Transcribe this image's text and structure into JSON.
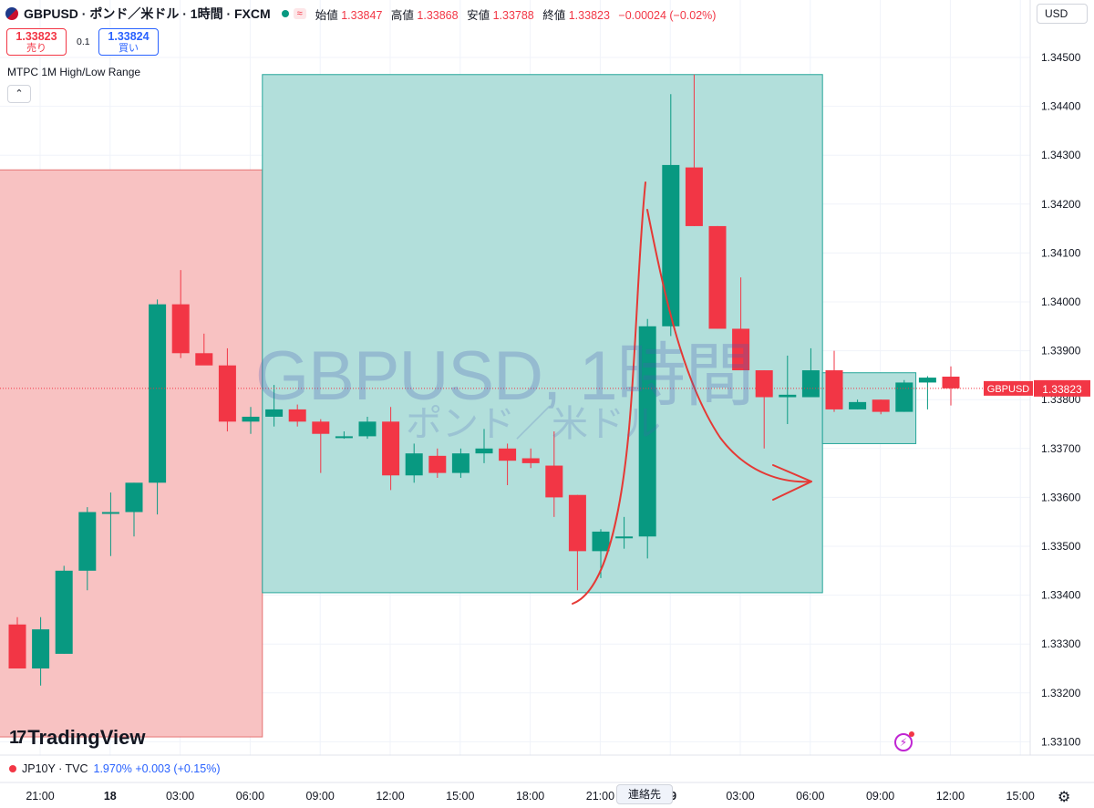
{
  "header": {
    "symbol": "GBPUSD · ポンド／米ドル · 1時間 · FXCM",
    "approx_label": "≈",
    "open_label": "始値",
    "open_value": "1.33847",
    "high_label": "高値",
    "high_value": "1.33868",
    "low_label": "安値",
    "low_value": "1.33788",
    "close_label": "終値",
    "close_value": "1.33823",
    "change": "−0.00024 (−0.02%)"
  },
  "trade": {
    "sell_price": "1.33823",
    "sell_label": "売り",
    "spread": "0.1",
    "buy_price": "1.33824",
    "buy_label": "買い"
  },
  "indicator_label": "MTPC  1M High/Low Range",
  "collapse_icon": "⌃",
  "currency": "USD",
  "watermark": {
    "line1": "GBPUSD, 1時間",
    "line2": "ポンド／米ドル"
  },
  "brand": "TradingView",
  "bottom_symbol": {
    "name": "JP10Y · TVC",
    "value": "1.970%  +0.003 (+0.15%)"
  },
  "tooltip": "連絡先",
  "last_price_tag": {
    "symbol": "GBPUSD",
    "price": "1.33823"
  },
  "colors": {
    "up": "#089981",
    "down": "#f23645",
    "grid": "#f0f3fa",
    "red_box": "#f8c2c2",
    "teal_box": "#b2dfdb",
    "teal_border": "#26a69a"
  },
  "chart_data": {
    "type": "candlestick",
    "y_ticks": [
      "1.34500",
      "1.34400",
      "1.34300",
      "1.34200",
      "1.34100",
      "1.34000",
      "1.33900",
      "1.33800",
      "1.33700",
      "1.33600",
      "1.33500",
      "1.33400",
      "1.33300",
      "1.33200",
      "1.33100"
    ],
    "ylim": [
      1.3307,
      1.346
    ],
    "x_ticks": [
      "21:00",
      "18",
      "03:00",
      "06:00",
      "09:00",
      "12:00",
      "15:00",
      "18:00",
      "21:00",
      "19",
      "03:00",
      "06:00",
      "09:00",
      "12:00",
      "15:00"
    ],
    "x_tick_bold": [
      "18",
      "19"
    ],
    "candles": [
      {
        "o": 1.3334,
        "h": 1.33355,
        "l": 1.3325,
        "c": 1.3325
      },
      {
        "o": 1.3325,
        "h": 1.33355,
        "l": 1.33215,
        "c": 1.3333
      },
      {
        "o": 1.3328,
        "h": 1.3346,
        "l": 1.3328,
        "c": 1.3345
      },
      {
        "o": 1.3345,
        "h": 1.3358,
        "l": 1.3341,
        "c": 1.3357
      },
      {
        "o": 1.3357,
        "h": 1.3361,
        "l": 1.3348,
        "c": 1.3357
      },
      {
        "o": 1.3357,
        "h": 1.3363,
        "l": 1.3352,
        "c": 1.3363
      },
      {
        "o": 1.3363,
        "h": 1.34005,
        "l": 1.33565,
        "c": 1.33995
      },
      {
        "o": 1.33995,
        "h": 1.34065,
        "l": 1.33885,
        "c": 1.33895
      },
      {
        "o": 1.33895,
        "h": 1.33935,
        "l": 1.33875,
        "c": 1.3387
      },
      {
        "o": 1.3387,
        "h": 1.33905,
        "l": 1.33735,
        "c": 1.33755
      },
      {
        "o": 1.33755,
        "h": 1.33785,
        "l": 1.3373,
        "c": 1.33765
      },
      {
        "o": 1.33765,
        "h": 1.3383,
        "l": 1.33745,
        "c": 1.3378
      },
      {
        "o": 1.3378,
        "h": 1.3379,
        "l": 1.33745,
        "c": 1.33755
      },
      {
        "o": 1.33755,
        "h": 1.3376,
        "l": 1.3365,
        "c": 1.3373
      },
      {
        "o": 1.33725,
        "h": 1.33735,
        "l": 1.3372,
        "c": 1.33725
      },
      {
        "o": 1.33725,
        "h": 1.33765,
        "l": 1.3372,
        "c": 1.33755
      },
      {
        "o": 1.33755,
        "h": 1.33785,
        "l": 1.33615,
        "c": 1.33645
      },
      {
        "o": 1.33645,
        "h": 1.3371,
        "l": 1.3363,
        "c": 1.3369
      },
      {
        "o": 1.33685,
        "h": 1.337,
        "l": 1.3364,
        "c": 1.3365
      },
      {
        "o": 1.3365,
        "h": 1.337,
        "l": 1.3364,
        "c": 1.3369
      },
      {
        "o": 1.3369,
        "h": 1.3374,
        "l": 1.3367,
        "c": 1.337
      },
      {
        "o": 1.337,
        "h": 1.3371,
        "l": 1.33625,
        "c": 1.33675
      },
      {
        "o": 1.3368,
        "h": 1.337,
        "l": 1.3366,
        "c": 1.3367
      },
      {
        "o": 1.33665,
        "h": 1.33735,
        "l": 1.3356,
        "c": 1.336
      },
      {
        "o": 1.33605,
        "h": 1.33605,
        "l": 1.3341,
        "c": 1.3349
      },
      {
        "o": 1.3349,
        "h": 1.33535,
        "l": 1.33435,
        "c": 1.3353
      },
      {
        "o": 1.3352,
        "h": 1.3356,
        "l": 1.33495,
        "c": 1.3352
      },
      {
        "o": 1.3352,
        "h": 1.33965,
        "l": 1.33475,
        "c": 1.3395
      },
      {
        "o": 1.3395,
        "h": 1.34425,
        "l": 1.3393,
        "c": 1.3428
      },
      {
        "o": 1.34275,
        "h": 1.34465,
        "l": 1.34155,
        "c": 1.34155
      },
      {
        "o": 1.34155,
        "h": 1.34155,
        "l": 1.33945,
        "c": 1.33945
      },
      {
        "o": 1.33945,
        "h": 1.3405,
        "l": 1.3386,
        "c": 1.3386
      },
      {
        "o": 1.3386,
        "h": 1.3386,
        "l": 1.337,
        "c": 1.33805
      },
      {
        "o": 1.33805,
        "h": 1.3389,
        "l": 1.3375,
        "c": 1.3381
      },
      {
        "o": 1.33805,
        "h": 1.33905,
        "l": 1.33805,
        "c": 1.3386
      },
      {
        "o": 1.3386,
        "h": 1.339,
        "l": 1.33775,
        "c": 1.3378
      },
      {
        "o": 1.3378,
        "h": 1.338,
        "l": 1.3378,
        "c": 1.33795
      },
      {
        "o": 1.338,
        "h": 1.338,
        "l": 1.3377,
        "c": 1.33775
      },
      {
        "o": 1.33775,
        "h": 1.3384,
        "l": 1.33775,
        "c": 1.33835
      },
      {
        "o": 1.33835,
        "h": 1.33848,
        "l": 1.3378,
        "c": 1.33845
      },
      {
        "o": 1.33847,
        "h": 1.33868,
        "l": 1.33788,
        "c": 1.33823
      }
    ],
    "zones": [
      {
        "color": "red",
        "from_candle": 0,
        "to_candle": 10,
        "high": 1.3427,
        "low": 1.3311
      },
      {
        "color": "teal",
        "from_candle": 11,
        "to_candle": 34,
        "high": 1.34465,
        "low": 1.33405
      },
      {
        "color": "teal",
        "from_candle": 35,
        "to_candle": 38,
        "high": 1.33855,
        "low": 1.3371
      }
    ]
  }
}
